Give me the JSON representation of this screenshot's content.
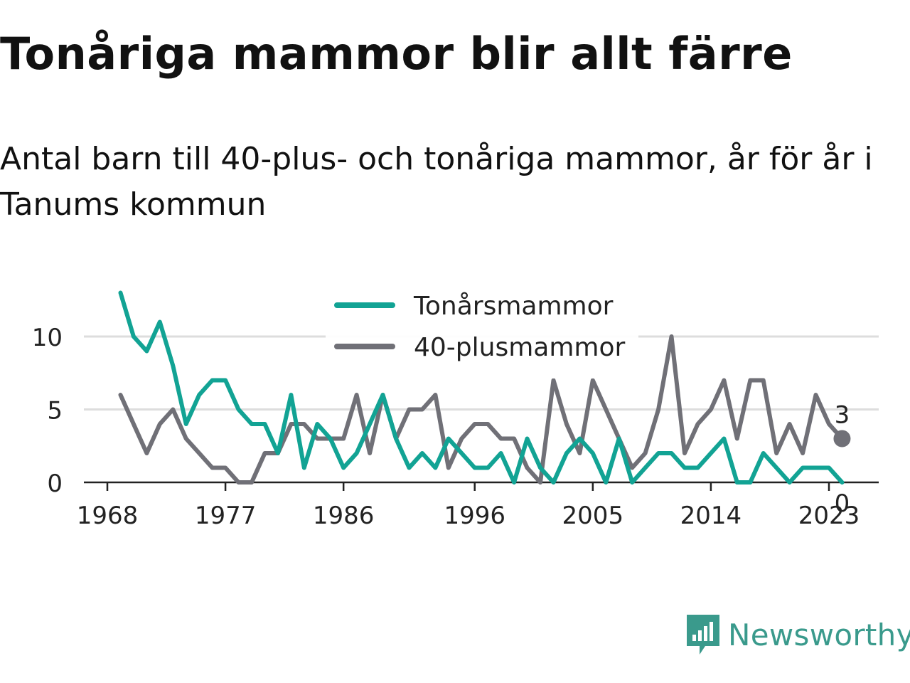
{
  "title": "Tonåriga mammor blir allt färre",
  "subtitle": "Antal barn till 40-plus- och tonåriga mammor, år för år i Tanums kommun",
  "brand": {
    "name": "Newsworthy",
    "logo_icon": "bar-chart-speech-bubble-icon",
    "color": "#3a9a8c"
  },
  "chart_data": {
    "type": "line",
    "x": [
      1969,
      1970,
      1971,
      1972,
      1973,
      1974,
      1975,
      1976,
      1977,
      1978,
      1979,
      1980,
      1981,
      1982,
      1983,
      1984,
      1985,
      1986,
      1987,
      1988,
      1989,
      1990,
      1991,
      1992,
      1993,
      1994,
      1995,
      1996,
      1997,
      1998,
      1999,
      2000,
      2001,
      2002,
      2003,
      2004,
      2005,
      2006,
      2007,
      2008,
      2009,
      2010,
      2011,
      2012,
      2013,
      2014,
      2015,
      2016,
      2017,
      2018,
      2019,
      2020,
      2021,
      2022,
      2023,
      2024
    ],
    "series": [
      {
        "name": "Tonårsmammor",
        "color": "#12a394",
        "values": [
          13,
          10,
          9,
          11,
          8,
          4,
          6,
          7,
          7,
          5,
          4,
          4,
          2,
          6,
          1,
          4,
          3,
          1,
          2,
          4,
          6,
          3,
          1,
          2,
          1,
          3,
          2,
          1,
          1,
          2,
          0,
          3,
          1,
          0,
          2,
          3,
          2,
          0,
          3,
          0,
          1,
          2,
          2,
          1,
          1,
          2,
          3,
          0,
          0,
          2,
          1,
          0,
          1,
          1,
          1,
          0
        ]
      },
      {
        "name": "40-plusmammor",
        "color": "#707077",
        "values": [
          6,
          4,
          2,
          4,
          5,
          3,
          2,
          1,
          1,
          0,
          0,
          2,
          2,
          4,
          4,
          3,
          3,
          3,
          6,
          2,
          6,
          3,
          5,
          5,
          6,
          1,
          3,
          4,
          4,
          3,
          3,
          1,
          0,
          7,
          4,
          2,
          7,
          5,
          3,
          1,
          2,
          5,
          10,
          2,
          4,
          5,
          7,
          3,
          7,
          7,
          2,
          4,
          2,
          6,
          4,
          3
        ]
      }
    ],
    "x_ticks": [
      "1968",
      "1977",
      "1986",
      "1996",
      "2005",
      "2014",
      "2023"
    ],
    "y_ticks": [
      "0",
      "5",
      "10"
    ],
    "xlim": [
      1968,
      2027
    ],
    "ylim": [
      0,
      13
    ],
    "end_labels": [
      "3",
      "0"
    ],
    "grid": true,
    "legend": "top-center"
  }
}
